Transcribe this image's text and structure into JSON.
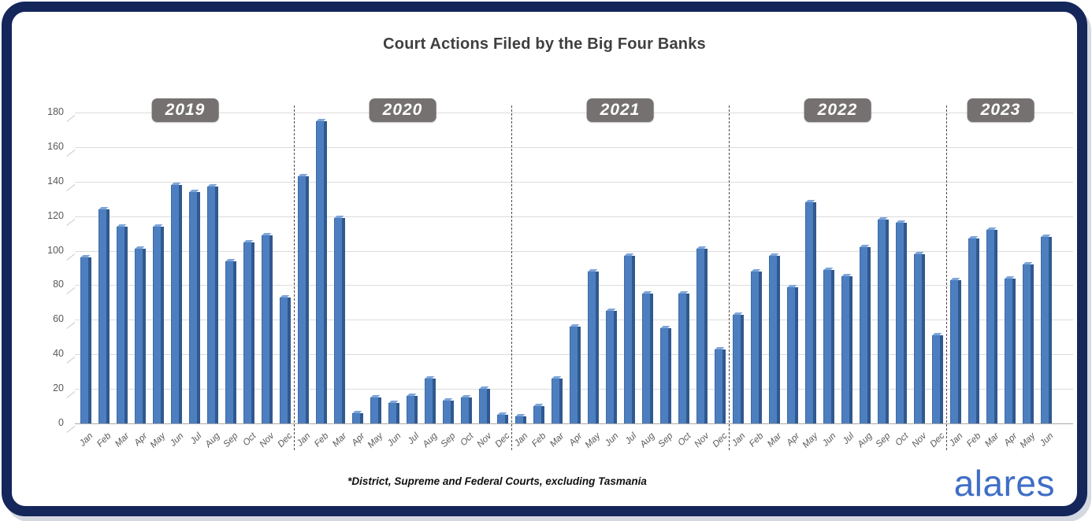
{
  "title": "Court Actions Filed by the Big Four Banks",
  "footnote": "*District, Supreme and Federal Courts, excluding Tasmania",
  "logo": {
    "text": "alares",
    "color": "#3f6ec5"
  },
  "frame": {
    "border_color": "#14265a",
    "background": "#ffffff"
  },
  "chart_data": {
    "type": "bar",
    "title": "Court Actions Filed by the Big Four Banks",
    "xlabel": "",
    "ylabel": "",
    "ylim": [
      0,
      180
    ],
    "ytick_step": 20,
    "grid": true,
    "legend": "none",
    "bar_color": "#4d7fc0",
    "bar_side_color": "#30598f",
    "bar_bevel_color": "#7fa6d9",
    "year_badge": {
      "background": "#767171",
      "text_color": "#ffffff"
    },
    "years": [
      {
        "label": "2019",
        "months": [
          "Jan",
          "Feb",
          "Mar",
          "Apr",
          "May",
          "Jun",
          "Jul",
          "Aug",
          "Sep",
          "Oct",
          "Nov",
          "Dec"
        ],
        "values": [
          96,
          124,
          114,
          101,
          114,
          138,
          134,
          137,
          94,
          105,
          109,
          73
        ]
      },
      {
        "label": "2020",
        "months": [
          "Jan",
          "Feb",
          "Mar",
          "Apr",
          "May",
          "Jun",
          "Jul",
          "Aug",
          "Sep",
          "Oct",
          "Nov",
          "Dec"
        ],
        "values": [
          143,
          175,
          119,
          6,
          15,
          12,
          16,
          26,
          13,
          15,
          20,
          5
        ]
      },
      {
        "label": "2021",
        "months": [
          "Jan",
          "Feb",
          "Mar",
          "Apr",
          "May",
          "Jun",
          "Jul",
          "Aug",
          "Sep",
          "Oct",
          "Nov",
          "Dec"
        ],
        "values": [
          4,
          10,
          26,
          56,
          88,
          65,
          97,
          75,
          55,
          75,
          101,
          43
        ]
      },
      {
        "label": "2022",
        "months": [
          "Jan",
          "Feb",
          "Mar",
          "Apr",
          "May",
          "Jun",
          "Jul",
          "Aug",
          "Sep",
          "Oct",
          "Nov",
          "Dec"
        ],
        "values": [
          63,
          88,
          97,
          79,
          128,
          89,
          85,
          102,
          118,
          116,
          98,
          51
        ]
      },
      {
        "label": "2023",
        "months": [
          "Jan",
          "Feb",
          "Mar",
          "Apr",
          "May",
          "Jun"
        ],
        "values": [
          83,
          107,
          112,
          84,
          92,
          108
        ]
      }
    ]
  }
}
